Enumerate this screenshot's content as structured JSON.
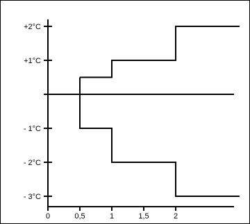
{
  "chart_data": {
    "type": "line",
    "title": "",
    "xlabel": "",
    "ylabel": "",
    "xlim": [
      0,
      3
    ],
    "ylim": [
      -3,
      2
    ],
    "grid": false,
    "legend": "none",
    "y_ticks": [
      {
        "value": 2,
        "label": "+2°C"
      },
      {
        "value": 1,
        "label": "+1°C"
      },
      {
        "value": 0,
        "label": ""
      },
      {
        "value": -1,
        "label": "- 1°C"
      },
      {
        "value": -2,
        "label": "- 2°C"
      },
      {
        "value": -3,
        "label": "- 3°C"
      }
    ],
    "x_ticks": [
      {
        "value": 0,
        "label": "0"
      },
      {
        "value": 0.5,
        "label": "0,5"
      },
      {
        "value": 1,
        "label": "1"
      },
      {
        "value": 1.5,
        "label": "1,5"
      },
      {
        "value": 2,
        "label": "2"
      }
    ],
    "reference_line": {
      "y": 0
    },
    "series": [
      {
        "step": true,
        "points": [
          [
            0.5,
            0.5
          ],
          [
            1.0,
            0.5
          ],
          [
            1.0,
            1.0
          ],
          [
            2.0,
            1.0
          ],
          [
            2.0,
            2.0
          ],
          [
            3.0,
            2.0
          ]
        ]
      },
      {
        "step": true,
        "points": [
          [
            0.5,
            0.5
          ],
          [
            0.5,
            -1.0
          ],
          [
            1.0,
            -1.0
          ],
          [
            1.0,
            -2.0
          ],
          [
            2.0,
            -2.0
          ],
          [
            2.0,
            -3.0
          ],
          [
            3.0,
            -3.0
          ]
        ]
      }
    ],
    "colors": {
      "line": "#000000"
    }
  }
}
